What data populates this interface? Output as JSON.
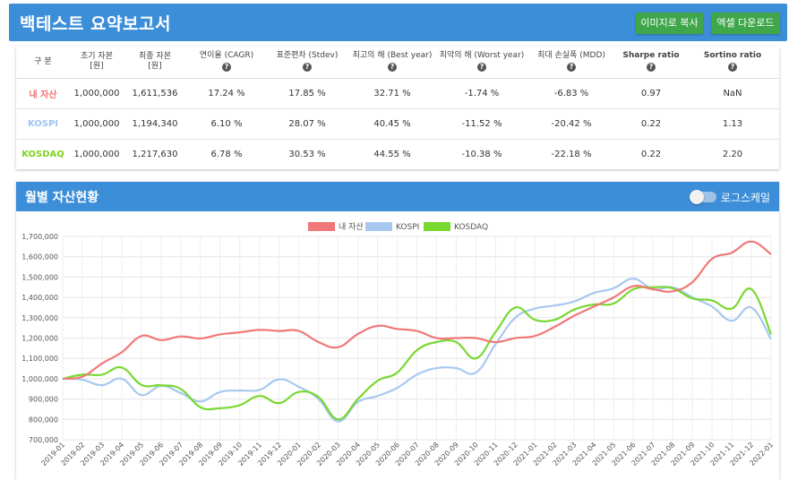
{
  "header": {
    "title": "백테스트 요약보고서",
    "copy_image_label": "이미지로 복사",
    "excel_download_label": "엑셀 다운로드"
  },
  "summary": {
    "columns": [
      {
        "label": "구 분",
        "help": false
      },
      {
        "label": "초기 자본",
        "sub": "[원]",
        "help": false
      },
      {
        "label": "최종 자본",
        "sub": "[원]",
        "help": false
      },
      {
        "label": "연이율 (CAGR)",
        "help": true
      },
      {
        "label": "표준편차 (Stdev)",
        "help": true
      },
      {
        "label": "최고의 해 (Best year)",
        "help": true
      },
      {
        "label": "최악의 해 (Worst year)",
        "help": true
      },
      {
        "label": "최대 손실폭 (MDD)",
        "help": true
      },
      {
        "label": "Sharpe ratio",
        "help": true,
        "bold": true
      },
      {
        "label": "Sortino ratio",
        "help": true,
        "bold": true
      }
    ],
    "rows": [
      {
        "name": "내 자산",
        "color": "#f07070",
        "cells": [
          "1,000,000",
          "1,611,536",
          "17.24 %",
          "17.85 %",
          "32.71 %",
          "-1.74 %",
          "-6.83 %",
          "0.97",
          "NaN"
        ]
      },
      {
        "name": "KOSPI",
        "color": "#9ec5f0",
        "cells": [
          "1,000,000",
          "1,194,340",
          "6.10 %",
          "28.07 %",
          "40.45 %",
          "-11.52 %",
          "-20.42 %",
          "0.22",
          "1.13"
        ]
      },
      {
        "name": "KOSDAQ",
        "color": "#7ed321",
        "cells": [
          "1,000,000",
          "1,217,630",
          "6.78 %",
          "30.53 %",
          "44.55 %",
          "-10.38 %",
          "-22.18 %",
          "0.22",
          "2.20"
        ]
      }
    ]
  },
  "chart_section": {
    "title": "월별 자산현황",
    "log_scale_label": "로그스케일",
    "log_scale_on": false
  },
  "chart_data": {
    "type": "line",
    "y_tick_labels": [
      "700,000",
      "800,000",
      "900,000",
      "1,000,000",
      "1,100,000",
      "1,200,000",
      "1,300,000",
      "1,400,000",
      "1,500,000",
      "1,600,000",
      "1,700,000"
    ],
    "ylim": [
      700000,
      1700000
    ],
    "legend_placement": "top-center",
    "grid": true,
    "x": [
      "2019-01",
      "2019-02",
      "2019-03",
      "2019-04",
      "2019-05",
      "2019-06",
      "2019-07",
      "2019-08",
      "2019-09",
      "2019-10",
      "2019-11",
      "2019-12",
      "2020-01",
      "2020-02",
      "2020-03",
      "2020-04",
      "2020-05",
      "2020-06",
      "2020-07",
      "2020-08",
      "2020-09",
      "2020-10",
      "2020-11",
      "2020-12",
      "2021-01",
      "2021-02",
      "2021-03",
      "2021-04",
      "2021-05",
      "2021-06",
      "2021-07",
      "2021-08",
      "2021-09",
      "2021-10",
      "2021-11",
      "2021-12",
      "2022-01"
    ],
    "series": [
      {
        "name": "내 자산",
        "color": "#f07878",
        "values": [
          1000000,
          1010000,
          1075000,
          1130000,
          1210000,
          1190000,
          1208000,
          1198000,
          1218000,
          1228000,
          1240000,
          1235000,
          1235000,
          1180000,
          1155000,
          1220000,
          1260000,
          1245000,
          1235000,
          1200000,
          1200000,
          1200000,
          1180000,
          1200000,
          1210000,
          1255000,
          1310000,
          1355000,
          1400000,
          1455000,
          1440000,
          1430000,
          1475000,
          1590000,
          1620000,
          1675000,
          1612000
        ]
      },
      {
        "name": "KOSPI",
        "color": "#a8c8f0",
        "values": [
          1000000,
          995000,
          968000,
          1000000,
          920000,
          965000,
          930000,
          888000,
          935000,
          942000,
          945000,
          997000,
          960000,
          900000,
          790000,
          885000,
          915000,
          955000,
          1020000,
          1052000,
          1052000,
          1030000,
          1170000,
          1300000,
          1345000,
          1360000,
          1380000,
          1422000,
          1445000,
          1492000,
          1440000,
          1450000,
          1400000,
          1355000,
          1285000,
          1350000,
          1194000
        ]
      },
      {
        "name": "KOSDAQ",
        "color": "#78d830",
        "values": [
          1000000,
          1020000,
          1020000,
          1055000,
          970000,
          968000,
          950000,
          860000,
          855000,
          870000,
          915000,
          880000,
          935000,
          910000,
          800000,
          900000,
          990000,
          1030000,
          1140000,
          1180000,
          1180000,
          1100000,
          1230000,
          1350000,
          1290000,
          1290000,
          1340000,
          1365000,
          1370000,
          1440000,
          1450000,
          1445000,
          1395000,
          1385000,
          1345000,
          1440000,
          1218000
        ]
      }
    ]
  }
}
